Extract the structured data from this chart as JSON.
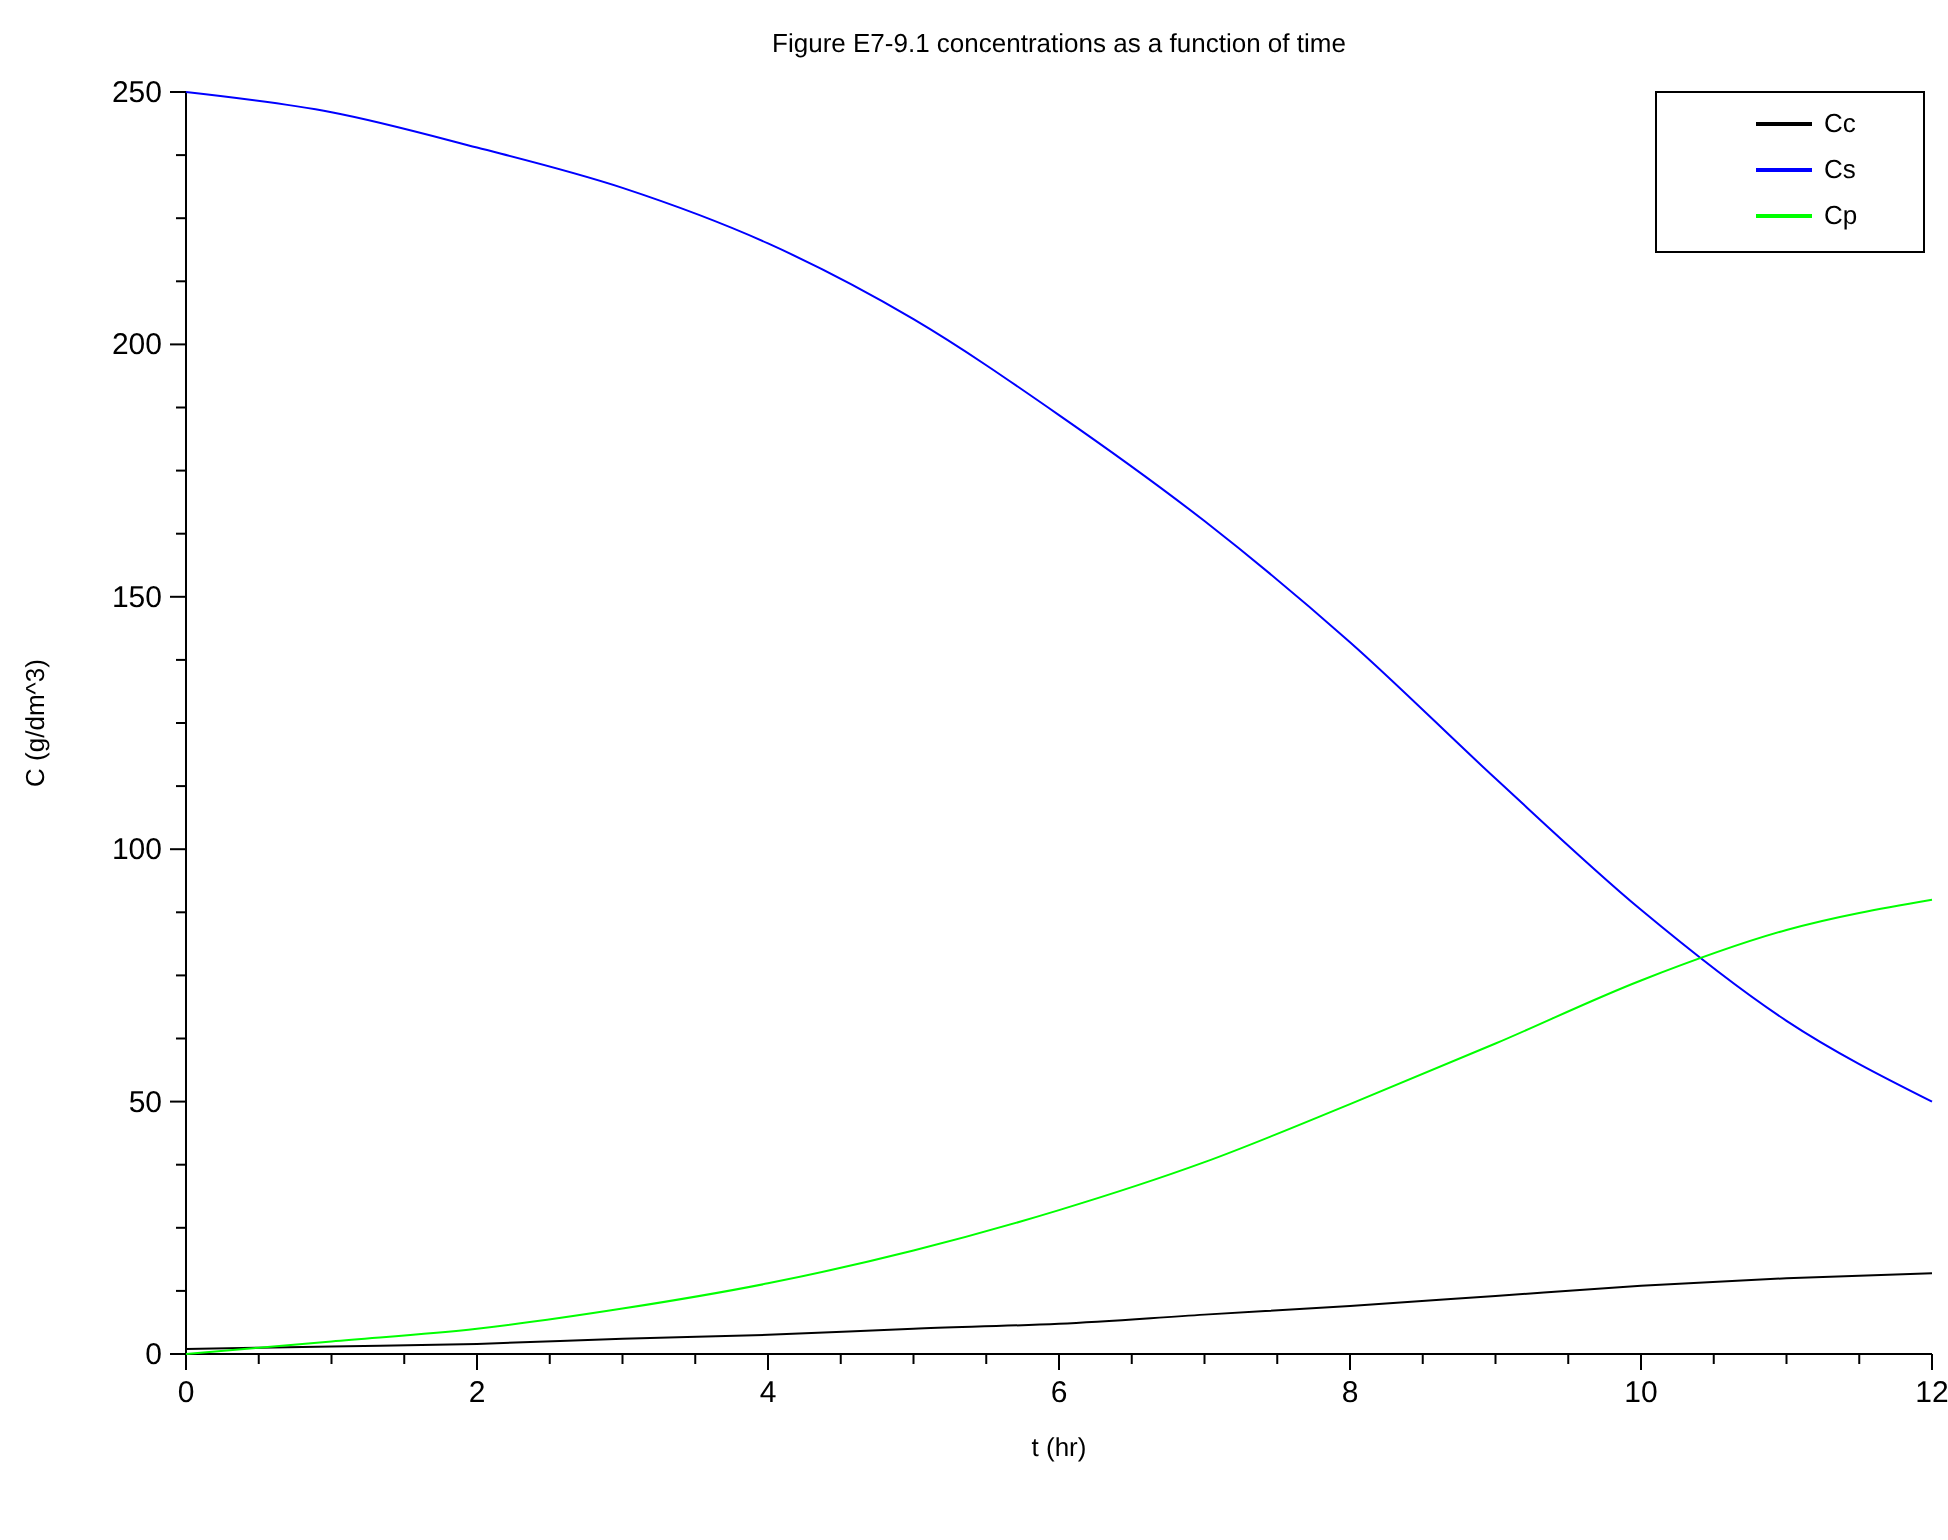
{
  "chart_data": {
    "type": "line",
    "title": "Figure E7-9.1 concentrations as a function of time",
    "xlabel": "t (hr)",
    "ylabel": "C (g/dm^3)",
    "x": [
      0,
      1,
      2,
      3,
      4,
      5,
      6,
      7,
      8,
      9,
      10,
      11,
      12
    ],
    "series": [
      {
        "name": "Cc",
        "color": "#000000",
        "values": [
          1,
          1.5,
          2,
          3,
          3.8,
          5,
          6,
          7.8,
          9.5,
          11.5,
          13.5,
          15,
          16
        ]
      },
      {
        "name": "Cs",
        "color": "#0000ff",
        "values": [
          250,
          246,
          239,
          231,
          220,
          205,
          186,
          165,
          141,
          114,
          88,
          66,
          50
        ]
      },
      {
        "name": "Cp",
        "color": "#00ff00",
        "values": [
          0,
          2.5,
          5,
          9,
          14,
          20.5,
          28.5,
          38,
          49.5,
          61.5,
          74,
          84,
          90
        ]
      }
    ],
    "xlim": [
      0,
      12
    ],
    "xticks": [
      0,
      {
        "value": 0.5,
        "label": null
      },
      2,
      {
        "value": 1,
        "label": null
      },
      {
        "value": 1.5,
        "label": null
      },
      {
        "value": 2.5,
        "label": null
      },
      {
        "value": 3,
        "label": null
      },
      {
        "value": 3.5,
        "label": null
      },
      4,
      {
        "value": 4.5,
        "label": null
      },
      {
        "value": 5,
        "label": null
      },
      {
        "value": 5.5,
        "label": null
      },
      6,
      {
        "value": 6.5,
        "label": null
      },
      {
        "value": 7,
        "label": null
      },
      {
        "value": 7.5,
        "label": null
      },
      8,
      {
        "value": 8.5,
        "label": null
      },
      {
        "value": 9,
        "label": null
      },
      {
        "value": 9.5,
        "label": null
      },
      10,
      {
        "value": 10.5,
        "label": null
      },
      {
        "value": 11,
        "label": null
      },
      {
        "value": 11.5,
        "label": null
      },
      12
    ],
    "ylim": [
      0,
      250
    ],
    "yticks": [
      0,
      {
        "value": 12.5,
        "label": null
      },
      {
        "value": 25,
        "label": null
      },
      {
        "value": 37.5,
        "label": null
      },
      50,
      {
        "value": 62.5,
        "label": null
      },
      {
        "value": 75,
        "label": null
      },
      {
        "value": 87.5,
        "label": null
      },
      100,
      {
        "value": 112.5,
        "label": null
      },
      {
        "value": 125,
        "label": null
      },
      {
        "value": 137.5,
        "label": null
      },
      150,
      {
        "value": 162.5,
        "label": null
      },
      {
        "value": 175,
        "label": null
      },
      {
        "value": 187.5,
        "label": null
      },
      200,
      {
        "value": 212.5,
        "label": null
      },
      {
        "value": 225,
        "label": null
      },
      {
        "value": 237.5,
        "label": null
      },
      250
    ],
    "legend": "top right",
    "grid": false,
    "marker": "none",
    "line_style": "solid"
  }
}
